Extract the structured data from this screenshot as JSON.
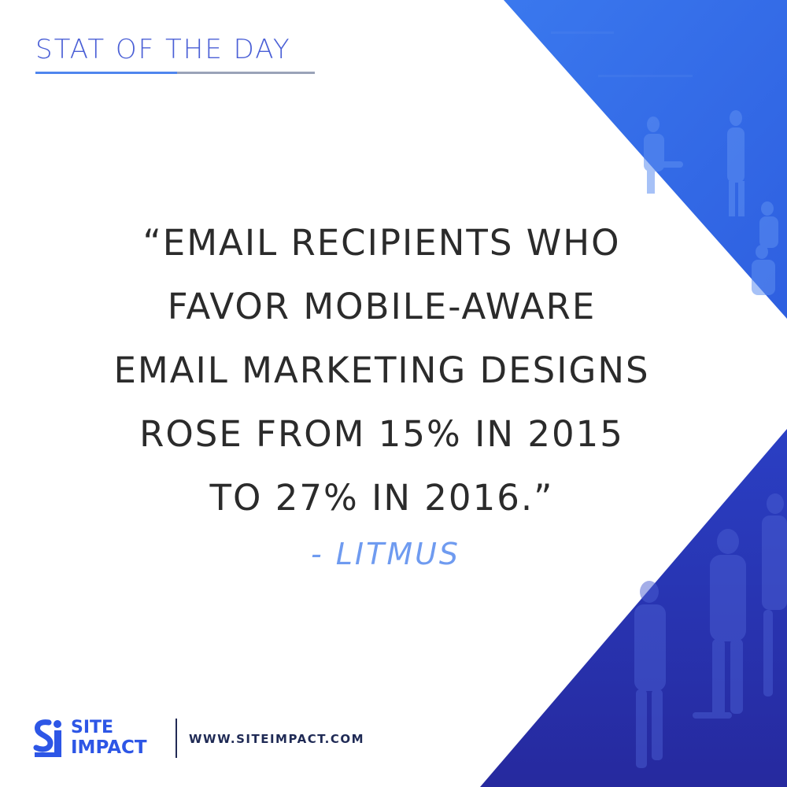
{
  "header": {
    "title": "STAT OF THE DAY"
  },
  "quote": {
    "lines": [
      "“EMAIL RECIPIENTS WHO",
      "FAVOR MOBILE-AWARE",
      "EMAIL MARKETING DESIGNS",
      "ROSE FROM 15% IN 2015",
      "TO 27% IN 2016.”"
    ],
    "attribution": "- LITMUS"
  },
  "footer": {
    "logo": {
      "word_top": "SITE",
      "word_bottom": "IMPACT",
      "mark_icon": "site-impact-logo-icon"
    },
    "url": "WWW.SITEIMPACT.COM"
  },
  "colors": {
    "background": "#ffffff",
    "blue_light": "#4f86ee",
    "blue_dark": "#2b36b8",
    "text": "#2b2b2b",
    "attribution": "#6f9bf0"
  }
}
